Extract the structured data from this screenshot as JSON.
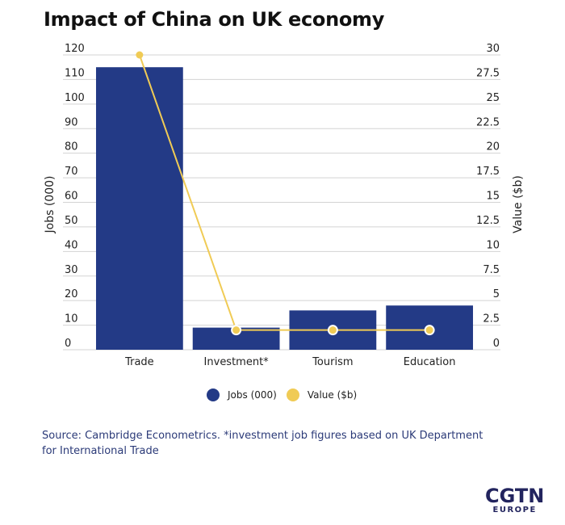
{
  "title": "Impact of China on UK economy",
  "colors": {
    "jobs": "#233a86",
    "value": "#f0cb55",
    "grid": "#d3d3d3"
  },
  "chart_data": {
    "type": "bar",
    "title": "Impact of China on UK economy",
    "categories": [
      "Trade",
      "Investment*",
      "Tourism",
      "Education"
    ],
    "series": [
      {
        "name": "Jobs (000)",
        "type": "bar",
        "axis": "left",
        "values": [
          115,
          9,
          16,
          18
        ]
      },
      {
        "name": "Value ($b)",
        "type": "line",
        "axis": "right",
        "values": [
          30,
          2,
          2,
          2
        ]
      }
    ],
    "ylabel": "Jobs (000)",
    "y2label": "Value ($b)",
    "ylim": [
      0,
      120
    ],
    "y2lim": [
      0,
      30
    ],
    "yticks": [
      "0",
      "10",
      "20",
      "30",
      "40",
      "50",
      "60",
      "70",
      "80",
      "90",
      "100",
      "110",
      "120"
    ],
    "y2ticks": [
      "0",
      "2.5",
      "5",
      "7.5",
      "10",
      "12.5",
      "15",
      "17.5",
      "20",
      "22.5",
      "25",
      "27.5",
      "30"
    ],
    "grid": true,
    "legend_position": "bottom"
  },
  "legend": [
    {
      "label": "Jobs (000)"
    },
    {
      "label": "Value ($b)"
    }
  ],
  "source": "Source: Cambridge Econometrics. *investment job figures based on UK Department for International Trade",
  "logo": {
    "main": "CGTN",
    "sub": "EUROPE"
  }
}
